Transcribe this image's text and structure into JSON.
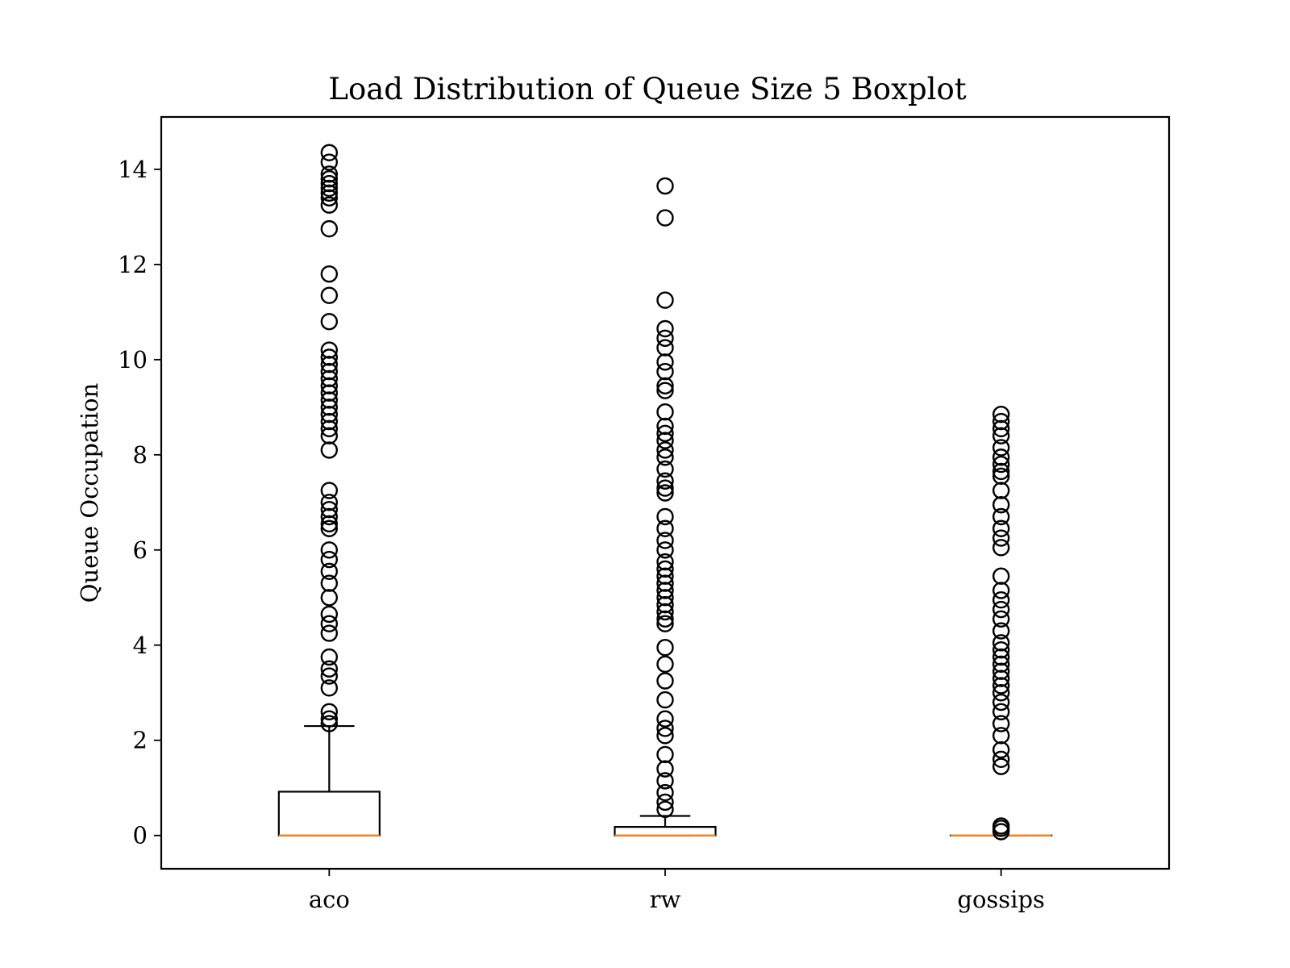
{
  "chart_data": {
    "type": "boxplot",
    "title": "Load Distribution of Queue Size 5 Boxplot",
    "xlabel": "",
    "ylabel": "Queue Occupation",
    "ylim": [
      -0.7,
      15.1
    ],
    "yticks": [
      0,
      2,
      4,
      6,
      8,
      10,
      12,
      14
    ],
    "grid": false,
    "colors": {
      "box": "#000000",
      "median": "#f08a24",
      "flier": "#000000"
    },
    "categories": [
      "aco",
      "rw",
      "gossips"
    ],
    "boxes": [
      {
        "label": "aco",
        "q1": 0,
        "median": 0,
        "q3": 0.92,
        "whisker_low": 0,
        "whisker_high": 2.3,
        "fliers": [
          14.35,
          14.15,
          13.9,
          13.8,
          13.7,
          13.6,
          13.5,
          13.4,
          13.25,
          12.75,
          11.8,
          11.35,
          10.8,
          10.2,
          10.05,
          9.9,
          9.75,
          9.6,
          9.45,
          9.3,
          9.15,
          9.0,
          8.85,
          8.7,
          8.55,
          8.4,
          8.1,
          7.25,
          7.0,
          6.85,
          6.7,
          6.55,
          6.45,
          6.0,
          5.8,
          5.55,
          5.3,
          5.0,
          4.65,
          4.45,
          4.25,
          3.75,
          3.5,
          3.35,
          3.1,
          2.6,
          2.45,
          2.35
        ]
      },
      {
        "label": "rw",
        "q1": 0,
        "median": 0,
        "q3": 0.18,
        "whisker_low": 0,
        "whisker_high": 0.41,
        "fliers": [
          13.65,
          12.98,
          11.25,
          10.65,
          10.45,
          10.25,
          9.95,
          9.75,
          9.45,
          9.35,
          8.9,
          8.6,
          8.45,
          8.3,
          8.1,
          7.95,
          7.7,
          7.45,
          7.3,
          7.2,
          6.7,
          6.45,
          6.2,
          6.0,
          5.75,
          5.6,
          5.45,
          5.3,
          5.15,
          5.0,
          4.85,
          4.7,
          4.55,
          4.45,
          3.95,
          3.6,
          3.25,
          2.85,
          2.45,
          2.25,
          2.1,
          1.7,
          1.4,
          1.15,
          0.9,
          0.7,
          0.55
        ]
      },
      {
        "label": "gossips",
        "q1": 0,
        "median": 0,
        "q3": 0,
        "whisker_low": 0,
        "whisker_high": 0,
        "fliers": [
          8.85,
          8.7,
          8.55,
          8.4,
          8.15,
          7.95,
          7.8,
          7.65,
          7.55,
          7.25,
          6.95,
          6.7,
          6.45,
          6.25,
          6.05,
          5.45,
          5.15,
          4.95,
          4.75,
          4.55,
          4.3,
          4.05,
          3.9,
          3.75,
          3.6,
          3.45,
          3.3,
          3.15,
          3.0,
          2.8,
          2.6,
          2.35,
          2.1,
          1.8,
          1.6,
          1.45,
          0.2,
          0.15,
          0.08
        ]
      }
    ]
  }
}
